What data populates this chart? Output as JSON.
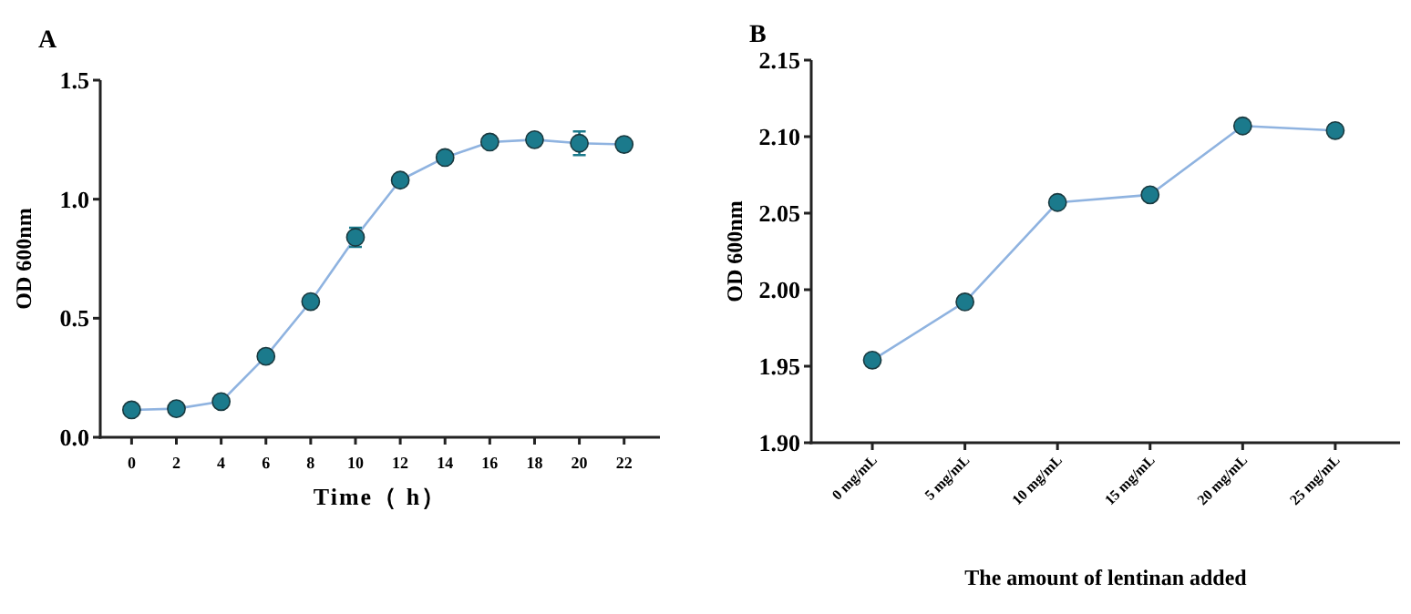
{
  "chart_data": [
    {
      "type": "line",
      "title": "A",
      "xlabel": "Time（ h）",
      "ylabel": "OD 600nm",
      "x": [
        0,
        2,
        4,
        6,
        8,
        10,
        12,
        14,
        16,
        18,
        20,
        22
      ],
      "series": [
        {
          "color": "#1b7a8c",
          "values": [
            0.115,
            0.12,
            0.15,
            0.34,
            0.57,
            0.84,
            1.08,
            1.175,
            1.24,
            1.25,
            1.235,
            1.23
          ],
          "errors": [
            null,
            null,
            null,
            null,
            null,
            0.04,
            null,
            null,
            null,
            null,
            0.05,
            null
          ]
        }
      ],
      "xlim": [
        -1.4,
        23.6
      ],
      "xticks": [
        0,
        2,
        4,
        6,
        8,
        10,
        12,
        14,
        16,
        18,
        20,
        22
      ],
      "ylim": [
        0,
        1.5
      ],
      "yticks": [
        {
          "value": 0,
          "label": "0.0"
        },
        0.5,
        {
          "value": 1,
          "label": "1.0"
        },
        1.5
      ],
      "marker": "circle",
      "line_style": "solid"
    },
    {
      "type": "line",
      "title": "B",
      "xlabel": "The amount of lentinan added",
      "ylabel": "OD 600nm",
      "categories": [
        "0 mg/mL",
        "5 mg/mL",
        "10 mg/mL",
        "15 mg/mL",
        "20 mg/mL",
        "25 mg/mL"
      ],
      "series": [
        {
          "color": "#1b7a8c",
          "values": [
            1.954,
            1.992,
            2.057,
            2.062,
            2.107,
            2.104
          ]
        }
      ],
      "ylim": [
        1.9,
        2.15
      ],
      "yticks": [
        {
          "value": 1.9,
          "label": "1.90"
        },
        1.95,
        {
          "value": 2.0,
          "label": "2.00"
        },
        2.05,
        {
          "value": 2.1,
          "label": "2.10"
        },
        2.15
      ],
      "marker": "circle",
      "line_style": "solid"
    }
  ]
}
